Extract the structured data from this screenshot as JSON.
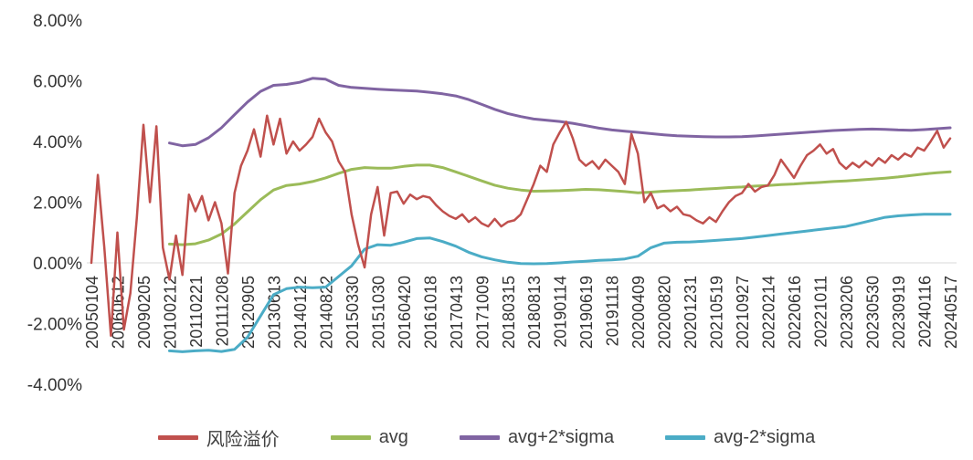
{
  "chart_data": {
    "type": "line",
    "title": "",
    "grid": false,
    "background": "#ffffff",
    "zero_line_color": "#d9d9d9",
    "legend": {
      "position": "bottom"
    },
    "y_axis": {
      "min": -4,
      "max": 8,
      "tick_step": 2,
      "format": "percent",
      "tick_labels": [
        "8.00%",
        "6.00%",
        "4.00%",
        "2.00%",
        "0.00%",
        "-2.00%",
        "-4.00%"
      ]
    },
    "x_axis": {
      "note": "series x values are fractional indexes into tick_labels",
      "tick_labels": [
        "20050104",
        "20060612",
        "20090205",
        "20100212",
        "20110221",
        "20111208",
        "20120905",
        "20130613",
        "20140122",
        "20140822",
        "20150330",
        "20151030",
        "20160420",
        "20161018",
        "20170413",
        "20171009",
        "20180315",
        "20180813",
        "20190114",
        "20190619",
        "20191118",
        "20200409",
        "20200820",
        "20201231",
        "20210519",
        "20210927",
        "20220214",
        "20220616",
        "20221011",
        "20230206",
        "20230530",
        "20230919",
        "20240116",
        "20240517"
      ]
    },
    "series": [
      {
        "name": "风险溢价",
        "slug": "risk-premium",
        "color": "#C0504D",
        "width": 2.5,
        "x_start": 0,
        "x_step": 0.25,
        "values": [
          0.0,
          2.9,
          0.5,
          -2.4,
          1.0,
          -2.2,
          -1.0,
          1.5,
          4.55,
          2.0,
          4.5,
          0.5,
          -0.55,
          0.9,
          -0.4,
          2.25,
          1.7,
          2.2,
          1.4,
          2.0,
          1.3,
          -0.35,
          2.3,
          3.2,
          3.7,
          4.4,
          3.5,
          4.85,
          3.9,
          4.75,
          3.6,
          4.0,
          3.7,
          3.9,
          4.15,
          4.75,
          4.3,
          4.0,
          3.35,
          3.0,
          1.6,
          0.6,
          -0.15,
          1.6,
          2.5,
          0.9,
          2.3,
          2.35,
          1.95,
          2.25,
          2.1,
          2.2,
          2.15,
          1.9,
          1.7,
          1.55,
          1.45,
          1.6,
          1.35,
          1.5,
          1.3,
          1.2,
          1.45,
          1.2,
          1.35,
          1.4,
          1.6,
          2.1,
          2.6,
          3.2,
          3.0,
          3.9,
          4.3,
          4.65,
          4.1,
          3.4,
          3.2,
          3.35,
          3.1,
          3.4,
          3.2,
          3.0,
          2.6,
          4.25,
          3.6,
          2.0,
          2.3,
          1.8,
          1.9,
          1.7,
          1.85,
          1.6,
          1.55,
          1.4,
          1.3,
          1.5,
          1.35,
          1.7,
          2.0,
          2.2,
          2.3,
          2.6,
          2.35,
          2.5,
          2.55,
          2.9,
          3.4,
          3.1,
          2.8,
          3.2,
          3.55,
          3.7,
          3.9,
          3.6,
          3.75,
          3.3,
          3.1,
          3.3,
          3.15,
          3.35,
          3.2,
          3.45,
          3.3,
          3.55,
          3.4,
          3.6,
          3.5,
          3.8,
          3.7,
          4.0,
          4.35,
          3.8,
          4.1
        ]
      },
      {
        "name": "avg",
        "slug": "avg",
        "color": "#9BBB59",
        "width": 3,
        "x_start": 3,
        "x_step": 0.5,
        "values": [
          0.62,
          0.6,
          0.63,
          0.75,
          0.95,
          1.28,
          1.68,
          2.08,
          2.4,
          2.55,
          2.6,
          2.68,
          2.8,
          2.95,
          3.08,
          3.14,
          3.12,
          3.12,
          3.18,
          3.22,
          3.22,
          3.14,
          3.0,
          2.85,
          2.7,
          2.56,
          2.46,
          2.4,
          2.36,
          2.37,
          2.38,
          2.4,
          2.42,
          2.41,
          2.38,
          2.35,
          2.31,
          2.33,
          2.36,
          2.38,
          2.4,
          2.43,
          2.45,
          2.48,
          2.5,
          2.53,
          2.55,
          2.58,
          2.6,
          2.63,
          2.65,
          2.68,
          2.7,
          2.73,
          2.76,
          2.79,
          2.83,
          2.88,
          2.93,
          2.97,
          3.0
        ]
      },
      {
        "name": "avg+2*sigma",
        "slug": "avg-plus-2sigma",
        "color": "#8064A2",
        "width": 3,
        "x_start": 3,
        "x_step": 0.5,
        "values": [
          3.95,
          3.86,
          3.9,
          4.12,
          4.45,
          4.88,
          5.3,
          5.65,
          5.85,
          5.88,
          5.95,
          6.08,
          6.05,
          5.85,
          5.78,
          5.75,
          5.72,
          5.7,
          5.68,
          5.66,
          5.62,
          5.57,
          5.5,
          5.38,
          5.22,
          5.06,
          4.92,
          4.82,
          4.74,
          4.7,
          4.66,
          4.6,
          4.52,
          4.44,
          4.38,
          4.34,
          4.3,
          4.26,
          4.22,
          4.19,
          4.17,
          4.16,
          4.15,
          4.15,
          4.16,
          4.18,
          4.21,
          4.24,
          4.27,
          4.3,
          4.33,
          4.36,
          4.38,
          4.4,
          4.41,
          4.4,
          4.38,
          4.37,
          4.39,
          4.42,
          4.45
        ]
      },
      {
        "name": "avg-2*sigma",
        "slug": "avg-minus-2sigma",
        "color": "#4BACC6",
        "width": 3,
        "x_start": 3,
        "x_step": 0.5,
        "values": [
          -2.9,
          -2.93,
          -2.9,
          -2.88,
          -2.92,
          -2.85,
          -2.45,
          -1.75,
          -1.05,
          -0.85,
          -0.8,
          -0.82,
          -0.8,
          -0.45,
          -0.1,
          0.45,
          0.6,
          0.58,
          0.68,
          0.8,
          0.82,
          0.7,
          0.55,
          0.35,
          0.2,
          0.1,
          0.02,
          -0.02,
          -0.03,
          -0.02,
          0.0,
          0.03,
          0.05,
          0.08,
          0.1,
          0.13,
          0.22,
          0.5,
          0.65,
          0.68,
          0.69,
          0.71,
          0.74,
          0.77,
          0.8,
          0.85,
          0.9,
          0.95,
          1.0,
          1.05,
          1.1,
          1.15,
          1.2,
          1.3,
          1.4,
          1.5,
          1.55,
          1.58,
          1.6,
          1.6,
          1.6
        ]
      }
    ]
  }
}
